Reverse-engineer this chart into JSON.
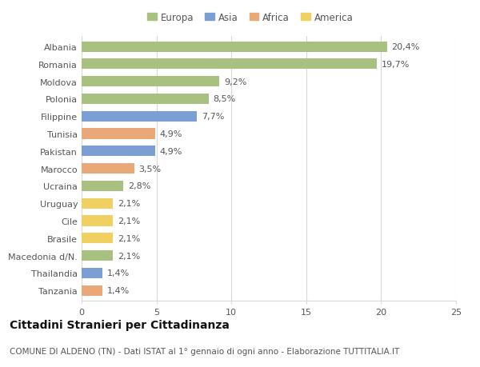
{
  "categories": [
    "Albania",
    "Romania",
    "Moldova",
    "Polonia",
    "Filippine",
    "Tunisia",
    "Pakistan",
    "Marocco",
    "Ucraina",
    "Uruguay",
    "Cile",
    "Brasile",
    "Macedonia d/N.",
    "Thailandia",
    "Tanzania"
  ],
  "values": [
    20.4,
    19.7,
    9.2,
    8.5,
    7.7,
    4.9,
    4.9,
    3.5,
    2.8,
    2.1,
    2.1,
    2.1,
    2.1,
    1.4,
    1.4
  ],
  "labels": [
    "20,4%",
    "19,7%",
    "9,2%",
    "8,5%",
    "7,7%",
    "4,9%",
    "4,9%",
    "3,5%",
    "2,8%",
    "2,1%",
    "2,1%",
    "2,1%",
    "2,1%",
    "1,4%",
    "1,4%"
  ],
  "regions": [
    "Europa",
    "Europa",
    "Europa",
    "Europa",
    "Asia",
    "Africa",
    "Asia",
    "Africa",
    "Europa",
    "America",
    "America",
    "America",
    "Europa",
    "Asia",
    "Africa"
  ],
  "region_colors": {
    "Europa": "#a8c080",
    "Asia": "#7b9fd4",
    "Africa": "#e8a878",
    "America": "#f0d060"
  },
  "legend_order": [
    "Europa",
    "Asia",
    "Africa",
    "America"
  ],
  "title": "Cittadini Stranieri per Cittadinanza",
  "subtitle": "COMUNE DI ALDENO (TN) - Dati ISTAT al 1° gennaio di ogni anno - Elaborazione TUTTITALIA.IT",
  "xlim": [
    0,
    25
  ],
  "xticks": [
    0,
    5,
    10,
    15,
    20,
    25
  ],
  "background_color": "#ffffff",
  "grid_color": "#d8d8d8",
  "bar_height": 0.6,
  "title_fontsize": 10,
  "subtitle_fontsize": 7.5,
  "label_fontsize": 8,
  "tick_fontsize": 8,
  "legend_fontsize": 8.5
}
